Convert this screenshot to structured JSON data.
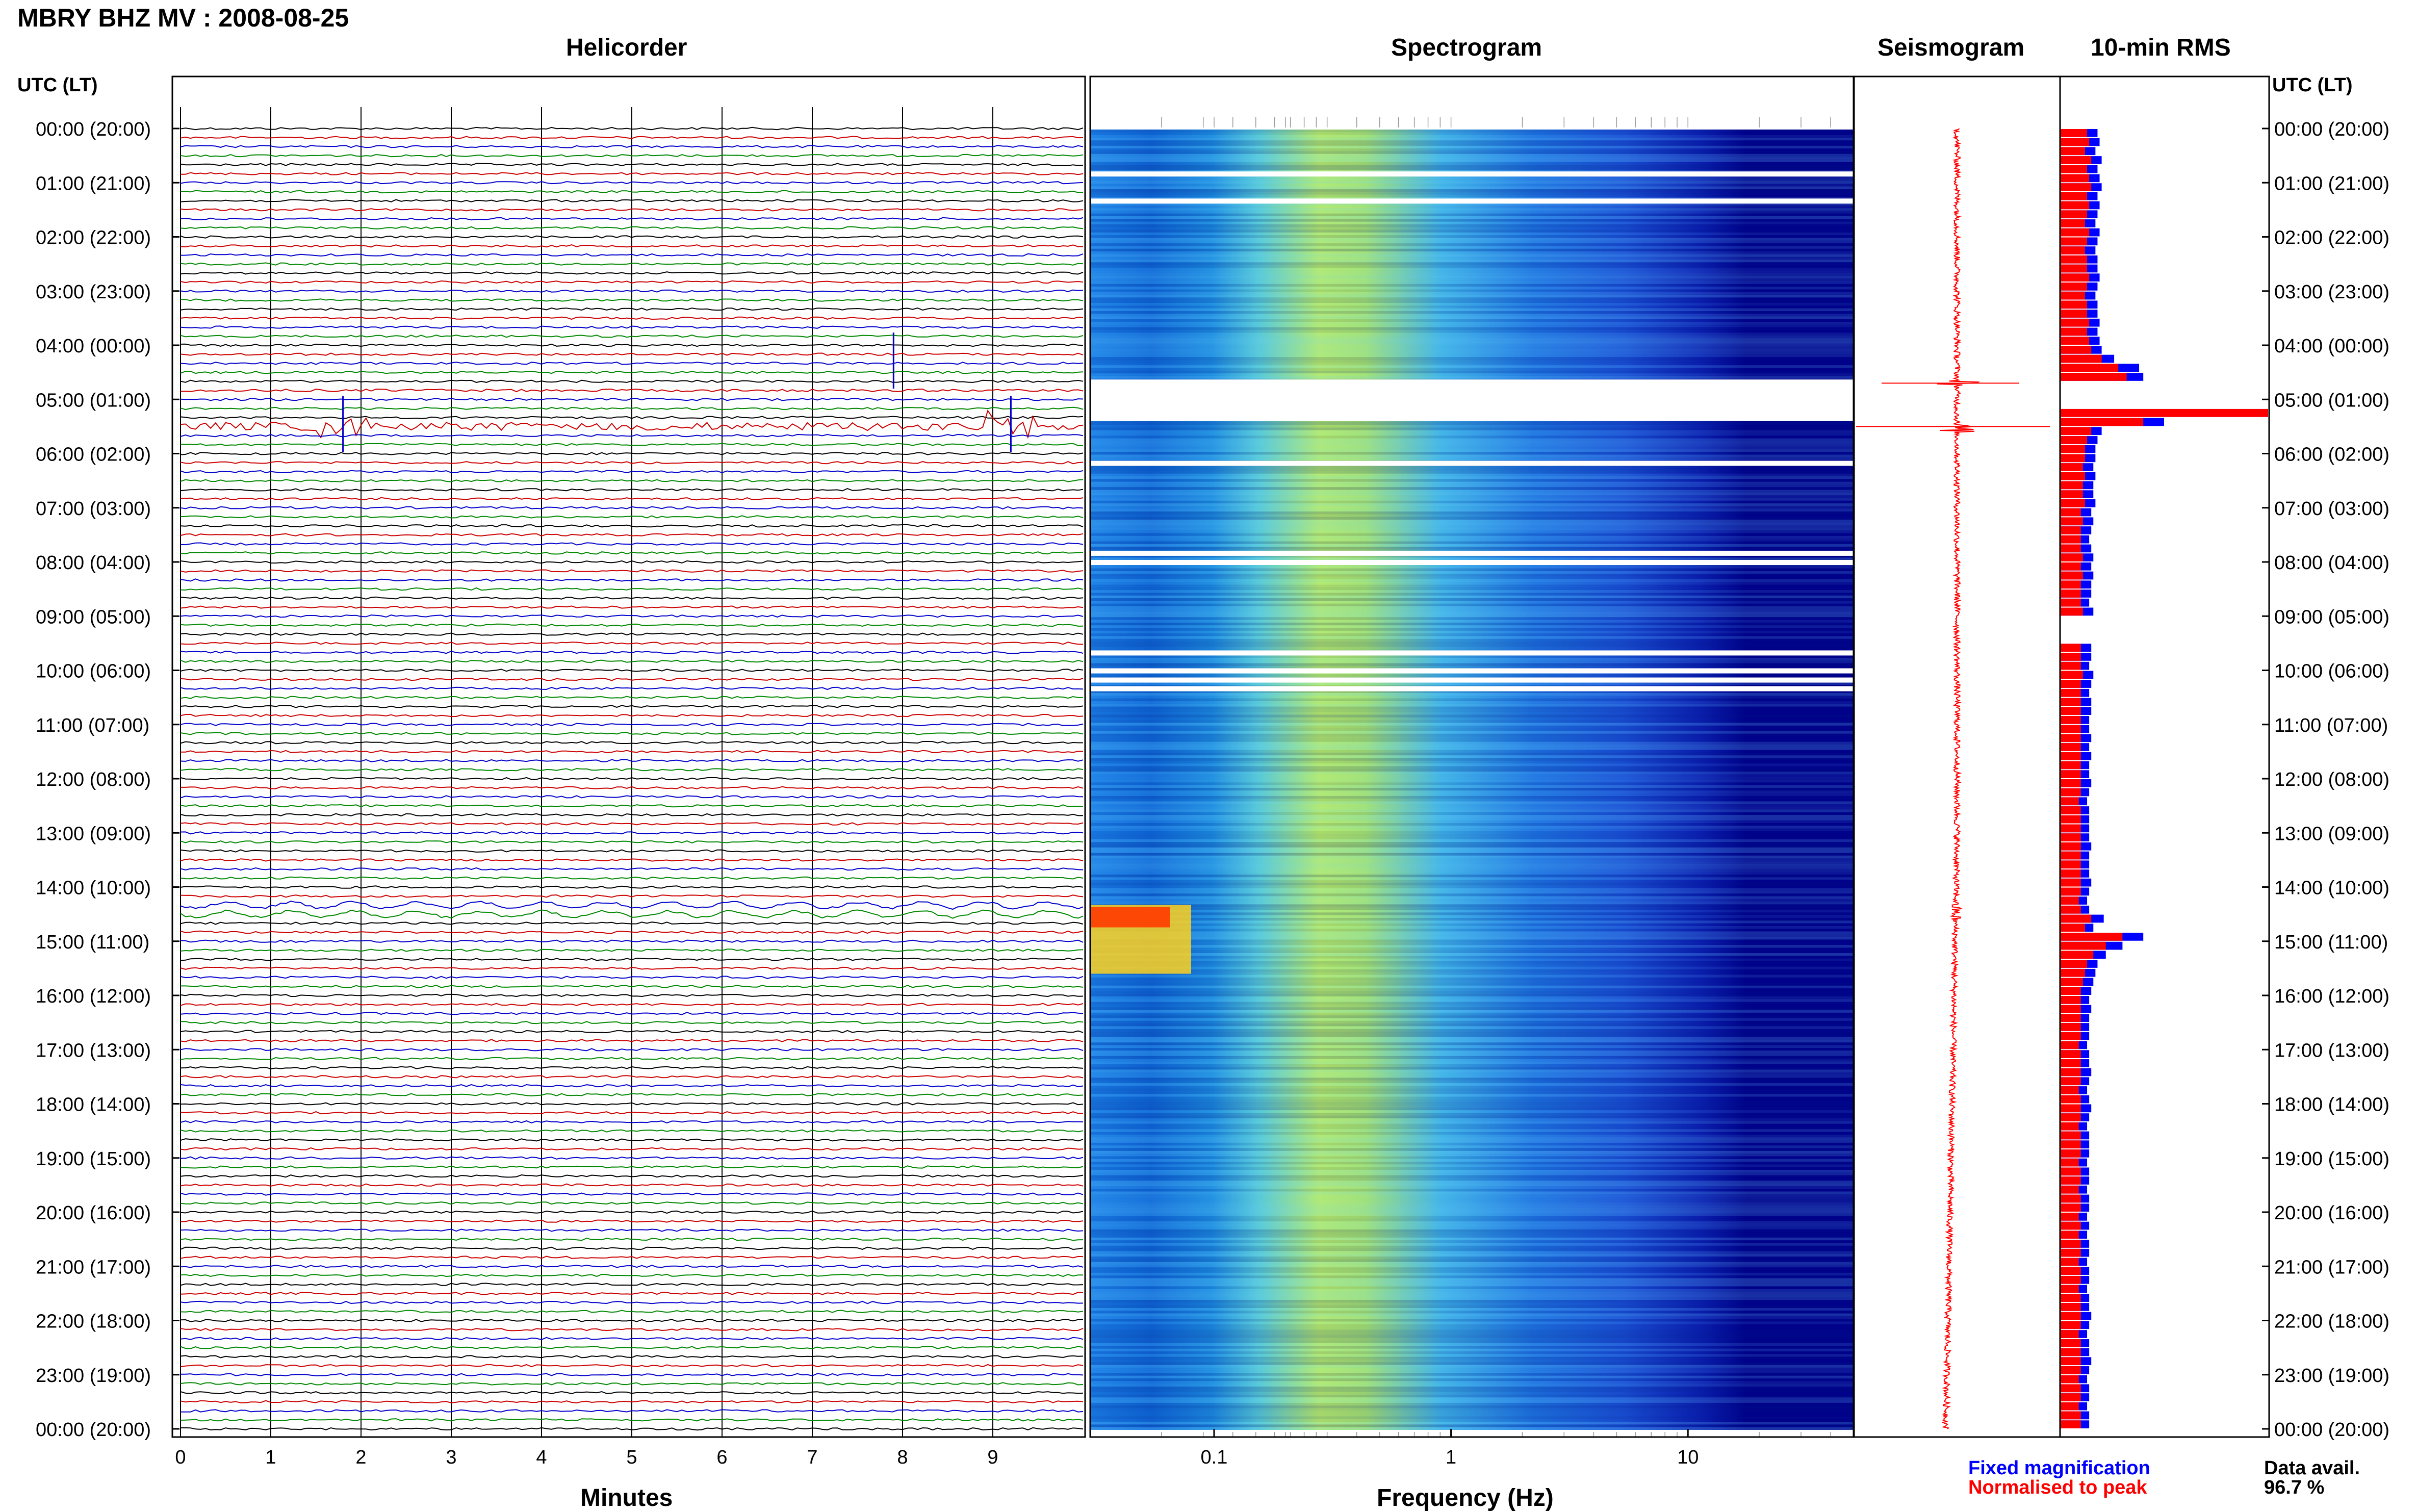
{
  "header": {
    "station_title": "MBRY BHZ MV : 2008-08-25",
    "panels": {
      "helicorder": "Helicorder",
      "spectrogram": "Spectrogram",
      "seismogram": "Seismogram",
      "rms": "10-min RMS"
    },
    "left_axis_head": "UTC (LT)",
    "right_axis_head": "UTC (LT)"
  },
  "footer": {
    "helicorder_xlabel": "Minutes",
    "spectrogram_xlabel": "Frequency (Hz)",
    "legend_fixed": "Fixed magnification",
    "legend_normalised": "Normalised to peak",
    "avail_label": "Data avail.",
    "avail_value": "96.7 %"
  },
  "colors": {
    "trace_cycle": [
      "#000000",
      "#cc0000",
      "#0000cc",
      "#008800"
    ],
    "rms_fixed": "#0000ff",
    "rms_normalised": "#ff0000",
    "seismogram": "#ff0000",
    "spectrogram_low": "#00008b",
    "spectrogram_high": "#ff2000"
  },
  "chart_data": {
    "type": "heatmap",
    "time_ticks": [
      "00:00 (20:00)",
      "01:00 (21:00)",
      "02:00 (22:00)",
      "03:00 (23:00)",
      "04:00 (00:00)",
      "05:00 (01:00)",
      "06:00 (02:00)",
      "07:00 (03:00)",
      "08:00 (04:00)",
      "09:00 (05:00)",
      "10:00 (06:00)",
      "11:00 (07:00)",
      "12:00 (08:00)",
      "13:00 (09:00)",
      "14:00 (10:00)",
      "15:00 (11:00)",
      "16:00 (12:00)",
      "17:00 (13:00)",
      "18:00 (14:00)",
      "19:00 (15:00)",
      "20:00 (16:00)",
      "21:00 (17:00)",
      "22:00 (18:00)",
      "23:00 (19:00)",
      "00:00 (20:00)"
    ],
    "helicorder": {
      "x_ticks": [
        "0",
        "1",
        "2",
        "3",
        "4",
        "5",
        "6",
        "7",
        "8",
        "9"
      ],
      "xlim_minutes": [
        0,
        10
      ],
      "lines_per_hour": 6,
      "events": [
        {
          "utc_hour": 4.33,
          "minute": 7.9,
          "amplitude": "large"
        },
        {
          "utc_hour": 5.5,
          "minute": 1.8,
          "amplitude": "large"
        },
        {
          "utc_hour": 5.5,
          "minute": 9.2,
          "amplitude": "large"
        },
        {
          "utc_hour": 14.33,
          "minute": 5.0,
          "amplitude": "oscillatory"
        }
      ]
    },
    "spectrogram": {
      "x_scale": "log",
      "xlim_hz": [
        0.03,
        50
      ],
      "x_ticks": [
        "0.1",
        "1",
        "10"
      ],
      "peak_band_hz": [
        0.2,
        0.6
      ],
      "hot_spot": {
        "utc_hours": [
          14.33,
          15.6
        ],
        "hz": [
          0.03,
          0.08
        ]
      },
      "gaps_utc": [
        0.83,
        1.33,
        4.67,
        5.0,
        5.17,
        6.17,
        7.83,
        8.0,
        9.67,
        10.0,
        10.17,
        10.33
      ]
    },
    "rms_10min": {
      "series": [
        {
          "name": "Fixed magnification",
          "values": [
            1.8,
            1.9,
            1.7,
            2.0,
            1.8,
            1.9,
            2.0,
            1.8,
            1.9,
            1.8,
            1.7,
            1.9,
            1.8,
            1.7,
            1.8,
            1.8,
            1.9,
            1.8,
            1.7,
            1.8,
            1.8,
            1.9,
            1.8,
            1.9,
            2.0,
            2.6,
            3.8,
            4.0,
            0,
            0,
            0,
            10.0,
            5.0,
            2.0,
            1.8,
            1.7,
            1.7,
            1.6,
            1.7,
            1.6,
            1.6,
            1.7,
            1.5,
            1.6,
            1.5,
            1.4,
            1.5,
            1.6,
            1.5,
            1.6,
            1.5,
            1.5,
            1.4,
            1.6,
            0,
            0,
            0,
            1.5,
            1.5,
            1.4,
            1.6,
            1.5,
            1.4,
            1.5,
            1.5,
            1.4,
            1.4,
            1.5,
            1.4,
            1.5,
            1.4,
            1.4,
            1.5,
            1.4,
            1.3,
            1.4,
            1.4,
            1.4,
            1.4,
            1.5,
            1.4,
            1.4,
            1.4,
            1.5,
            1.4,
            1.3,
            1.4,
            2.1,
            1.6,
            4.0,
            3.0,
            2.2,
            1.8,
            1.7,
            1.6,
            1.5,
            1.4,
            1.5,
            1.4,
            1.4,
            1.4,
            1.3,
            1.4,
            1.4,
            1.5,
            1.4,
            1.3,
            1.4,
            1.5,
            1.4,
            1.3,
            1.4,
            1.4,
            1.4,
            1.3,
            1.4,
            1.4,
            1.3,
            1.4,
            1.4,
            1.3,
            1.4,
            1.3,
            1.4,
            1.4,
            1.3,
            1.4,
            1.4,
            1.3,
            1.4,
            1.4,
            1.5,
            1.4,
            1.3,
            1.4,
            1.4,
            1.5,
            1.4,
            1.3,
            1.4,
            1.4,
            1.3,
            1.4,
            1.4
          ]
        },
        {
          "name": "Normalised to peak",
          "values": [
            1.3,
            1.4,
            1.2,
            1.5,
            1.3,
            1.4,
            1.5,
            1.3,
            1.4,
            1.3,
            1.2,
            1.4,
            1.3,
            1.2,
            1.3,
            1.3,
            1.4,
            1.3,
            1.2,
            1.3,
            1.3,
            1.4,
            1.3,
            1.4,
            1.5,
            2.0,
            2.8,
            3.2,
            0,
            0,
            0,
            10.0,
            4.0,
            1.5,
            1.3,
            1.2,
            1.2,
            1.1,
            1.2,
            1.1,
            1.1,
            1.2,
            1.0,
            1.1,
            1.0,
            1.0,
            1.0,
            1.1,
            1.0,
            1.1,
            1.0,
            1.0,
            1.0,
            1.1,
            0,
            0,
            0,
            1.0,
            1.0,
            1.0,
            1.1,
            1.0,
            1.0,
            1.0,
            1.0,
            1.0,
            1.0,
            1.0,
            1.0,
            1.0,
            1.0,
            1.0,
            1.0,
            1.0,
            0.9,
            1.0,
            1.0,
            1.0,
            1.0,
            1.0,
            1.0,
            1.0,
            1.0,
            1.0,
            1.0,
            0.9,
            1.0,
            1.5,
            1.2,
            3.0,
            2.2,
            1.6,
            1.3,
            1.2,
            1.1,
            1.0,
            1.0,
            1.0,
            1.0,
            1.0,
            1.0,
            0.9,
            1.0,
            1.0,
            1.0,
            1.0,
            0.9,
            1.0,
            1.0,
            1.0,
            0.9,
            1.0,
            1.0,
            1.0,
            0.9,
            1.0,
            1.0,
            0.9,
            1.0,
            1.0,
            0.9,
            1.0,
            0.9,
            1.0,
            1.0,
            0.9,
            1.0,
            1.0,
            0.9,
            1.0,
            1.0,
            1.0,
            1.0,
            0.9,
            1.0,
            1.0,
            1.0,
            1.0,
            0.9,
            1.0,
            1.0,
            0.9,
            1.0,
            1.0
          ]
        }
      ]
    }
  }
}
